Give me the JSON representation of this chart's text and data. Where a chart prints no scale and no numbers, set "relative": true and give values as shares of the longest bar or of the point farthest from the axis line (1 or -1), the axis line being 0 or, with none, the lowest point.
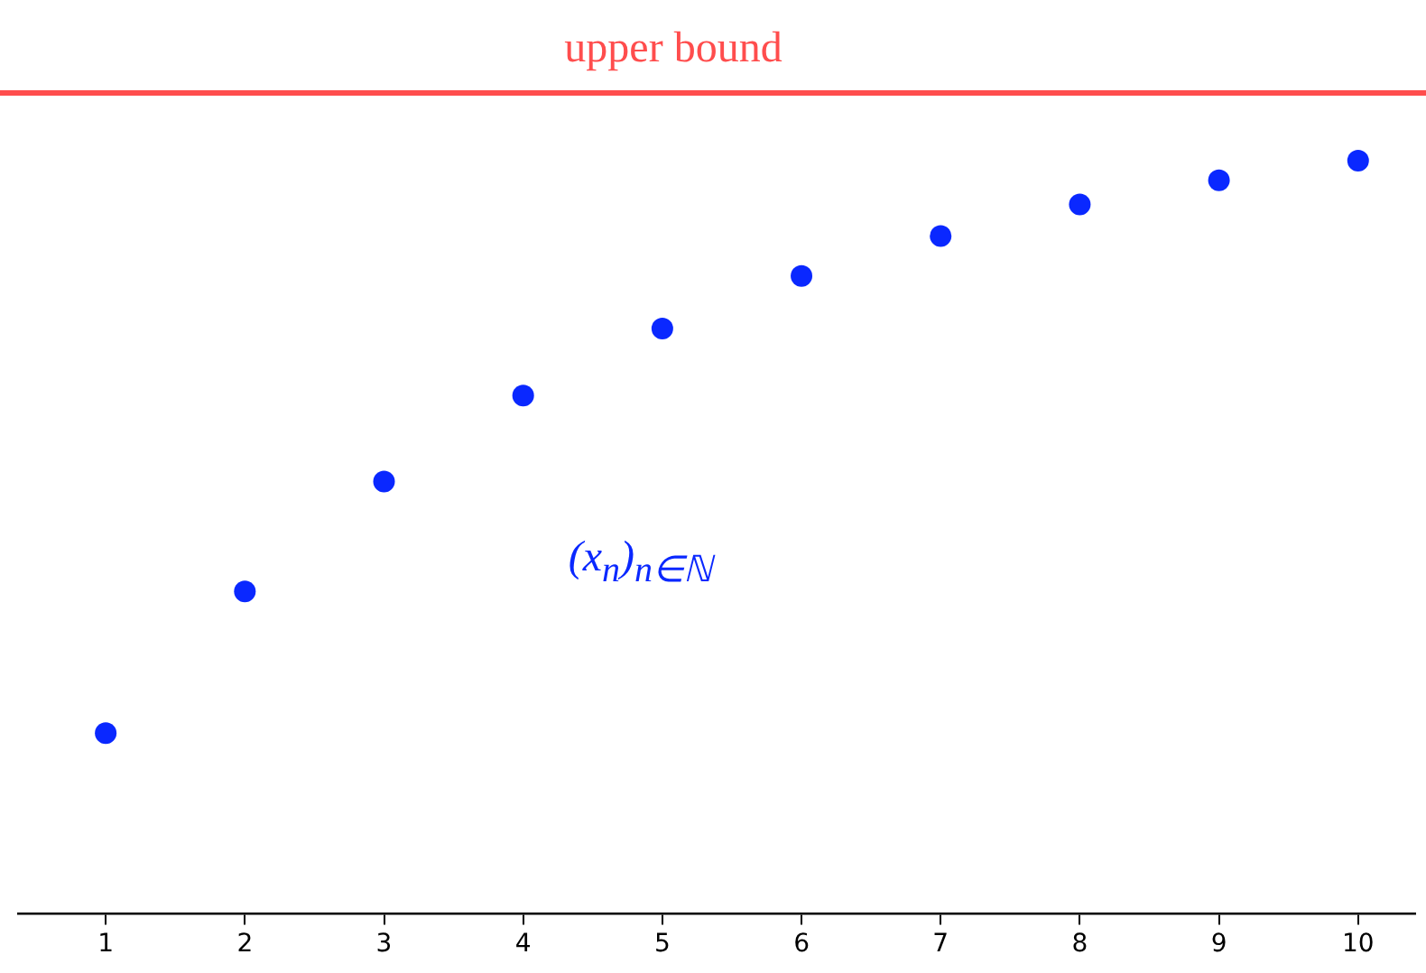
{
  "chart_data": {
    "type": "scatter",
    "relative": true,
    "x": [
      1,
      2,
      3,
      4,
      5,
      6,
      7,
      8,
      9,
      10
    ],
    "xlim": [
      0.37,
      10.41
    ],
    "xticks": [
      1,
      2,
      3,
      4,
      5,
      6,
      7,
      8,
      9,
      10
    ],
    "series": [
      {
        "name": "(x$_{n}$)$_{n∈ℕ}$",
        "color": "#0a28ff",
        "values": [
          0.24,
          0.428,
          0.574,
          0.688,
          0.777,
          0.847,
          0.9,
          0.942,
          0.974,
          1
        ]
      }
    ],
    "ref_lines": [
      {
        "axis": "y",
        "value": 1.09,
        "label": "upper bound",
        "color": "#ff4d4d",
        "line_style": "solid"
      }
    ],
    "marker": "circle",
    "grid": false,
    "legend": false
  }
}
